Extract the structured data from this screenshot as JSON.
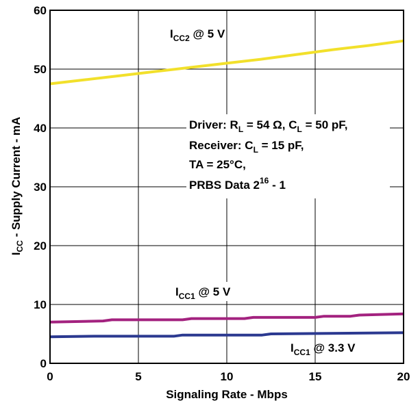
{
  "chart_data": {
    "type": "line",
    "xlabel": "Signaling Rate - Mbps",
    "ylabel": {
      "main": "I",
      "sub": "CC",
      "rest": " - Supply Current - mA"
    },
    "xlim": [
      0,
      20
    ],
    "ylim": [
      0,
      60
    ],
    "x_ticks": [
      "0",
      "5",
      "10",
      "15",
      "20"
    ],
    "y_ticks": [
      "0",
      "10",
      "20",
      "30",
      "40",
      "50",
      "60"
    ],
    "grid": true,
    "series": [
      {
        "name": "ICC2 @ 5 V",
        "color": "#f2e02b",
        "x": [
          0,
          2,
          4,
          6,
          8,
          10,
          12,
          14,
          16,
          18,
          20
        ],
        "y": [
          47.5,
          48.2,
          48.9,
          49.6,
          50.3,
          51.0,
          51.7,
          52.5,
          53.3,
          54.0,
          54.8
        ]
      },
      {
        "name": "ICC1 @ 5 V",
        "color": "#a3227f",
        "x": [
          0,
          3,
          3.5,
          7.5,
          8,
          11,
          11.5,
          15,
          15.5,
          17,
          17.5,
          20
        ],
        "y": [
          7.0,
          7.2,
          7.4,
          7.4,
          7.6,
          7.6,
          7.8,
          7.8,
          8.0,
          8.0,
          8.2,
          8.4
        ]
      },
      {
        "name": "ICC1 @ 3.3 V",
        "color": "#2b3990",
        "x": [
          0,
          2.5,
          7,
          7.5,
          12,
          12.5,
          20
        ],
        "y": [
          4.5,
          4.6,
          4.6,
          4.8,
          4.8,
          5.0,
          5.2
        ]
      }
    ],
    "annotations": {
      "icc2": {
        "main": "I",
        "sub": "CC2",
        "rest": " @ 5 V"
      },
      "icc1_5v": {
        "main": "I",
        "sub": "CC1",
        "rest": " @ 5 V"
      },
      "icc1_33v": {
        "main": "I",
        "sub": "CC1",
        "rest": " @ 3.3 V"
      },
      "conditions": {
        "line1": {
          "a": "Driver: R",
          "sub1": "L",
          "b": " = 54 Ω, C",
          "sub2": "L",
          "c": " = 50 pF,"
        },
        "line2": {
          "a": "Receiver: C",
          "sub1": "L",
          "b": " = 15 pF,"
        },
        "line3": "TA = 25°C,",
        "line4": {
          "a": "PRBS Data 2",
          "sup": "16",
          "b": " - 1"
        }
      }
    }
  }
}
